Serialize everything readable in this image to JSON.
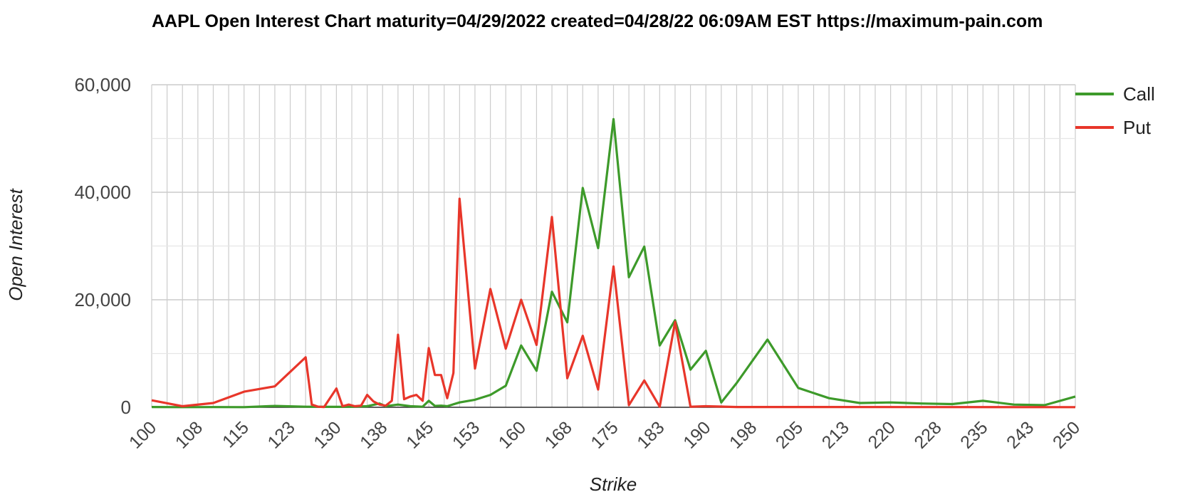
{
  "chart_data": {
    "type": "line",
    "title": "AAPL Open Interest Chart maturity=04/29/2022 created=04/28/22 06:09AM EST https://maximum-pain.com",
    "xlabel": "Strike",
    "ylabel": "Open Interest",
    "xlim": [
      100,
      250
    ],
    "ylim": [
      0,
      60000
    ],
    "x_tick_labels": [
      "100",
      "108",
      "115",
      "123",
      "130",
      "138",
      "145",
      "153",
      "160",
      "168",
      "175",
      "183",
      "190",
      "198",
      "205",
      "213",
      "220",
      "228",
      "235",
      "243",
      "250"
    ],
    "y_tick_labels": [
      "0",
      "20,000",
      "40,000",
      "60,000"
    ],
    "y_ticks": [
      0,
      20000,
      40000,
      60000
    ],
    "grid": true,
    "legend_position": "top-right",
    "series": [
      {
        "name": "Call",
        "color": "#3d9a2a",
        "points": [
          [
            100,
            50
          ],
          [
            105,
            20
          ],
          [
            110,
            40
          ],
          [
            115,
            30
          ],
          [
            120,
            250
          ],
          [
            125,
            100
          ],
          [
            130,
            80
          ],
          [
            132.5,
            100
          ],
          [
            135,
            200
          ],
          [
            137,
            700
          ],
          [
            138,
            200
          ],
          [
            140,
            500
          ],
          [
            142,
            200
          ],
          [
            144,
            100
          ],
          [
            145,
            1200
          ],
          [
            146,
            250
          ],
          [
            147,
            300
          ],
          [
            148,
            200
          ],
          [
            150,
            900
          ],
          [
            152.5,
            1400
          ],
          [
            155,
            2300
          ],
          [
            157.5,
            4000
          ],
          [
            160,
            11500
          ],
          [
            162.5,
            6800
          ],
          [
            165,
            21500
          ],
          [
            167.5,
            15800
          ],
          [
            170,
            40800
          ],
          [
            172.5,
            29600
          ],
          [
            175,
            53600
          ],
          [
            177.5,
            24200
          ],
          [
            180,
            29900
          ],
          [
            182.5,
            11500
          ],
          [
            185,
            16200
          ],
          [
            187.5,
            7000
          ],
          [
            190,
            10500
          ],
          [
            192.5,
            900
          ],
          [
            195,
            4500
          ],
          [
            200,
            12600
          ],
          [
            205,
            3600
          ],
          [
            210,
            1700
          ],
          [
            215,
            800
          ],
          [
            220,
            900
          ],
          [
            225,
            700
          ],
          [
            230,
            600
          ],
          [
            235,
            1200
          ],
          [
            240,
            500
          ],
          [
            245,
            400
          ],
          [
            250,
            2000
          ]
        ]
      },
      {
        "name": "Put",
        "color": "#e8362a",
        "points": [
          [
            100,
            1300
          ],
          [
            105,
            200
          ],
          [
            110,
            800
          ],
          [
            115,
            2900
          ],
          [
            120,
            3900
          ],
          [
            125,
            9300
          ],
          [
            126,
            500
          ],
          [
            127,
            100
          ],
          [
            128,
            50
          ],
          [
            130,
            3500
          ],
          [
            131,
            200
          ],
          [
            132,
            500
          ],
          [
            133,
            200
          ],
          [
            134,
            300
          ],
          [
            135,
            2300
          ],
          [
            136,
            1100
          ],
          [
            137,
            500
          ],
          [
            138,
            300
          ],
          [
            139,
            1200
          ],
          [
            140,
            13500
          ],
          [
            141,
            1500
          ],
          [
            142,
            2000
          ],
          [
            143,
            2300
          ],
          [
            144,
            1200
          ],
          [
            145,
            11000
          ],
          [
            146,
            6000
          ],
          [
            147,
            6000
          ],
          [
            148,
            1700
          ],
          [
            149,
            6400
          ],
          [
            150,
            38800
          ],
          [
            152.5,
            7200
          ],
          [
            155,
            22000
          ],
          [
            157.5,
            10900
          ],
          [
            160,
            20000
          ],
          [
            162.5,
            11600
          ],
          [
            165,
            35400
          ],
          [
            167.5,
            5400
          ],
          [
            170,
            13300
          ],
          [
            172.5,
            3300
          ],
          [
            175,
            26200
          ],
          [
            177.5,
            400
          ],
          [
            180,
            5000
          ],
          [
            182.5,
            100
          ],
          [
            185,
            15900
          ],
          [
            187.5,
            100
          ],
          [
            190,
            200
          ],
          [
            195,
            50
          ],
          [
            200,
            50
          ],
          [
            250,
            30
          ]
        ]
      }
    ]
  },
  "legend": {
    "items": [
      {
        "label": "Call",
        "color": "#3d9a2a"
      },
      {
        "label": "Put",
        "color": "#e8362a"
      }
    ]
  }
}
